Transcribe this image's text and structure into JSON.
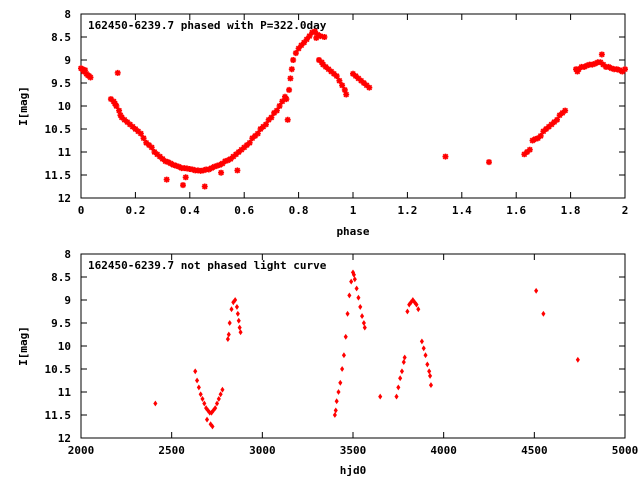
{
  "chart_data": [
    {
      "type": "scatter",
      "title": "162450-6239.7 phased with P=322.0day",
      "xlabel": "phase",
      "ylabel": "I[mag]",
      "xlim": [
        0,
        2
      ],
      "ylim": [
        8,
        12
      ],
      "y_inverted": true,
      "grid": false,
      "legend": "none",
      "color": "#ff0000",
      "marker": "star",
      "xticks": [
        0,
        0.2,
        0.4,
        0.6,
        0.8,
        1,
        1.2,
        1.4,
        1.6,
        1.8,
        2
      ],
      "xtick_labels": [
        "0",
        "0.2",
        "0.4",
        "0.6",
        "0.8",
        "1",
        "1.2",
        "1.4",
        "1.6",
        "1.8",
        "2"
      ],
      "yticks": [
        8,
        8.5,
        9,
        9.5,
        10,
        10.5,
        11,
        11.5,
        12
      ],
      "ytick_labels": [
        "8",
        "8.5",
        "9",
        "9.5",
        "10",
        "10.5",
        "11",
        "11.5",
        "12"
      ],
      "series": [
        {
          "points": [
            [
              0.0,
              9.18
            ],
            [
              0.005,
              9.2
            ],
            [
              0.01,
              9.25
            ],
            [
              0.015,
              9.22
            ],
            [
              0.02,
              9.3
            ],
            [
              0.025,
              9.33
            ],
            [
              0.03,
              9.35
            ],
            [
              0.035,
              9.38
            ],
            [
              0.11,
              9.85
            ],
            [
              0.12,
              9.9
            ],
            [
              0.125,
              9.95
            ],
            [
              0.13,
              10.0
            ],
            [
              0.135,
              9.28
            ],
            [
              0.14,
              10.1
            ],
            [
              0.145,
              10.2
            ],
            [
              0.15,
              10.25
            ],
            [
              0.16,
              10.3
            ],
            [
              0.17,
              10.35
            ],
            [
              0.18,
              10.4
            ],
            [
              0.19,
              10.45
            ],
            [
              0.2,
              10.5
            ],
            [
              0.21,
              10.55
            ],
            [
              0.22,
              10.6
            ],
            [
              0.23,
              10.7
            ],
            [
              0.24,
              10.8
            ],
            [
              0.25,
              10.85
            ],
            [
              0.26,
              10.9
            ],
            [
              0.27,
              11.0
            ],
            [
              0.28,
              11.05
            ],
            [
              0.29,
              11.1
            ],
            [
              0.3,
              11.15
            ],
            [
              0.31,
              11.2
            ],
            [
              0.315,
              11.6
            ],
            [
              0.32,
              11.22
            ],
            [
              0.33,
              11.25
            ],
            [
              0.34,
              11.28
            ],
            [
              0.35,
              11.3
            ],
            [
              0.36,
              11.32
            ],
            [
              0.37,
              11.35
            ],
            [
              0.375,
              11.72
            ],
            [
              0.38,
              11.35
            ],
            [
              0.385,
              11.55
            ],
            [
              0.39,
              11.36
            ],
            [
              0.4,
              11.37
            ],
            [
              0.41,
              11.38
            ],
            [
              0.42,
              11.4
            ],
            [
              0.43,
              11.4
            ],
            [
              0.44,
              11.41
            ],
            [
              0.45,
              11.4
            ],
            [
              0.455,
              11.75
            ],
            [
              0.46,
              11.38
            ],
            [
              0.47,
              11.38
            ],
            [
              0.48,
              11.35
            ],
            [
              0.49,
              11.32
            ],
            [
              0.5,
              11.3
            ],
            [
              0.51,
              11.28
            ],
            [
              0.515,
              11.45
            ],
            [
              0.52,
              11.25
            ],
            [
              0.53,
              11.2
            ],
            [
              0.54,
              11.18
            ],
            [
              0.55,
              11.15
            ],
            [
              0.56,
              11.1
            ],
            [
              0.57,
              11.05
            ],
            [
              0.575,
              11.4
            ],
            [
              0.58,
              11.0
            ],
            [
              0.59,
              10.95
            ],
            [
              0.6,
              10.9
            ],
            [
              0.61,
              10.85
            ],
            [
              0.62,
              10.8
            ],
            [
              0.63,
              10.7
            ],
            [
              0.64,
              10.65
            ],
            [
              0.65,
              10.6
            ],
            [
              0.66,
              10.5
            ],
            [
              0.67,
              10.45
            ],
            [
              0.68,
              10.4
            ],
            [
              0.69,
              10.3
            ],
            [
              0.7,
              10.25
            ],
            [
              0.71,
              10.15
            ],
            [
              0.72,
              10.1
            ],
            [
              0.73,
              10.0
            ],
            [
              0.74,
              9.9
            ],
            [
              0.75,
              9.8
            ],
            [
              0.755,
              9.85
            ],
            [
              0.76,
              10.3
            ],
            [
              0.765,
              9.65
            ],
            [
              0.77,
              9.4
            ],
            [
              0.775,
              9.2
            ],
            [
              0.78,
              9.0
            ],
            [
              0.79,
              8.85
            ],
            [
              0.8,
              8.75
            ],
            [
              0.81,
              8.68
            ],
            [
              0.82,
              8.62
            ],
            [
              0.83,
              8.55
            ],
            [
              0.84,
              8.48
            ],
            [
              0.85,
              8.4
            ],
            [
              0.86,
              8.38
            ],
            [
              0.865,
              8.52
            ],
            [
              0.87,
              8.45
            ],
            [
              0.875,
              9.0
            ],
            [
              0.88,
              8.48
            ],
            [
              0.885,
              9.05
            ],
            [
              0.89,
              9.1
            ],
            [
              0.895,
              8.5
            ],
            [
              0.9,
              9.15
            ],
            [
              0.91,
              9.2
            ],
            [
              0.92,
              9.25
            ],
            [
              0.93,
              9.3
            ],
            [
              0.94,
              9.35
            ],
            [
              0.95,
              9.45
            ],
            [
              0.96,
              9.55
            ],
            [
              0.97,
              9.65
            ],
            [
              0.975,
              9.75
            ],
            [
              1.0,
              9.3
            ],
            [
              1.01,
              9.35
            ],
            [
              1.02,
              9.4
            ],
            [
              1.03,
              9.45
            ],
            [
              1.04,
              9.5
            ],
            [
              1.05,
              9.55
            ],
            [
              1.06,
              9.6
            ],
            [
              1.34,
              11.1
            ],
            [
              1.5,
              11.22
            ],
            [
              1.63,
              11.05
            ],
            [
              1.64,
              11.0
            ],
            [
              1.65,
              10.95
            ],
            [
              1.66,
              10.75
            ],
            [
              1.67,
              10.72
            ],
            [
              1.68,
              10.7
            ],
            [
              1.69,
              10.65
            ],
            [
              1.7,
              10.55
            ],
            [
              1.71,
              10.5
            ],
            [
              1.72,
              10.45
            ],
            [
              1.73,
              10.4
            ],
            [
              1.74,
              10.35
            ],
            [
              1.75,
              10.3
            ],
            [
              1.76,
              10.2
            ],
            [
              1.77,
              10.15
            ],
            [
              1.78,
              10.1
            ],
            [
              1.82,
              9.2
            ],
            [
              1.825,
              9.25
            ],
            [
              1.83,
              9.2
            ],
            [
              1.84,
              9.15
            ],
            [
              1.85,
              9.15
            ],
            [
              1.86,
              9.12
            ],
            [
              1.87,
              9.1
            ],
            [
              1.88,
              9.1
            ],
            [
              1.89,
              9.08
            ],
            [
              1.9,
              9.05
            ],
            [
              1.91,
              9.05
            ],
            [
              1.915,
              8.88
            ],
            [
              1.92,
              9.1
            ],
            [
              1.93,
              9.15
            ],
            [
              1.94,
              9.15
            ],
            [
              1.95,
              9.18
            ],
            [
              1.96,
              9.2
            ],
            [
              1.97,
              9.2
            ],
            [
              1.98,
              9.22
            ],
            [
              1.99,
              9.25
            ],
            [
              2.0,
              9.2
            ]
          ]
        }
      ]
    },
    {
      "type": "scatter",
      "title": "162450-6239.7 not phased light curve",
      "xlabel": "hjd0",
      "ylabel": "I[mag]",
      "xlim": [
        2000,
        5000
      ],
      "ylim": [
        8,
        12
      ],
      "y_inverted": true,
      "grid": false,
      "legend": "none",
      "color": "#ff0000",
      "marker": "diamond",
      "xticks": [
        2000,
        2500,
        3000,
        3500,
        4000,
        4500,
        5000
      ],
      "xtick_labels": [
        "2000",
        "2500",
        "3000",
        "3500",
        "4000",
        "4500",
        "5000"
      ],
      "yticks": [
        8,
        8.5,
        9,
        9.5,
        10,
        10.5,
        11,
        11.5,
        12
      ],
      "ytick_labels": [
        "8",
        "8.5",
        "9",
        "9.5",
        "10",
        "10.5",
        "11",
        "11.5",
        "12"
      ],
      "series": [
        {
          "points": [
            [
              2410,
              11.25
            ],
            [
              2630,
              10.55
            ],
            [
              2640,
              10.75
            ],
            [
              2650,
              10.9
            ],
            [
              2660,
              11.05
            ],
            [
              2670,
              11.15
            ],
            [
              2680,
              11.25
            ],
            [
              2690,
              11.35
            ],
            [
              2695,
              11.6
            ],
            [
              2700,
              11.4
            ],
            [
              2710,
              11.45
            ],
            [
              2715,
              11.7
            ],
            [
              2720,
              11.45
            ],
            [
              2725,
              11.75
            ],
            [
              2730,
              11.4
            ],
            [
              2740,
              11.35
            ],
            [
              2750,
              11.25
            ],
            [
              2760,
              11.15
            ],
            [
              2770,
              11.05
            ],
            [
              2780,
              10.95
            ],
            [
              2810,
              9.85
            ],
            [
              2815,
              9.75
            ],
            [
              2820,
              9.5
            ],
            [
              2830,
              9.2
            ],
            [
              2840,
              9.05
            ],
            [
              2850,
              9.0
            ],
            [
              2860,
              9.15
            ],
            [
              2865,
              9.3
            ],
            [
              2870,
              9.45
            ],
            [
              2875,
              9.6
            ],
            [
              2880,
              9.7
            ],
            [
              3400,
              11.5
            ],
            [
              3405,
              11.4
            ],
            [
              3410,
              11.2
            ],
            [
              3420,
              11.0
            ],
            [
              3430,
              10.8
            ],
            [
              3440,
              10.5
            ],
            [
              3450,
              10.2
            ],
            [
              3460,
              9.8
            ],
            [
              3470,
              9.3
            ],
            [
              3480,
              8.9
            ],
            [
              3490,
              8.6
            ],
            [
              3500,
              8.4
            ],
            [
              3505,
              8.45
            ],
            [
              3510,
              8.55
            ],
            [
              3520,
              8.75
            ],
            [
              3530,
              8.95
            ],
            [
              3540,
              9.15
            ],
            [
              3550,
              9.35
            ],
            [
              3560,
              9.5
            ],
            [
              3565,
              9.6
            ],
            [
              3650,
              11.1
            ],
            [
              3740,
              11.1
            ],
            [
              3750,
              10.9
            ],
            [
              3760,
              10.7
            ],
            [
              3770,
              10.55
            ],
            [
              3780,
              10.35
            ],
            [
              3785,
              10.25
            ],
            [
              3800,
              9.25
            ],
            [
              3810,
              9.1
            ],
            [
              3820,
              9.05
            ],
            [
              3830,
              9.0
            ],
            [
              3840,
              9.05
            ],
            [
              3850,
              9.1
            ],
            [
              3860,
              9.2
            ],
            [
              3880,
              9.9
            ],
            [
              3890,
              10.05
            ],
            [
              3900,
              10.2
            ],
            [
              3910,
              10.4
            ],
            [
              3920,
              10.55
            ],
            [
              3925,
              10.65
            ],
            [
              3930,
              10.85
            ],
            [
              4510,
              8.8
            ],
            [
              4550,
              9.3
            ],
            [
              4740,
              10.3
            ]
          ]
        }
      ]
    }
  ]
}
